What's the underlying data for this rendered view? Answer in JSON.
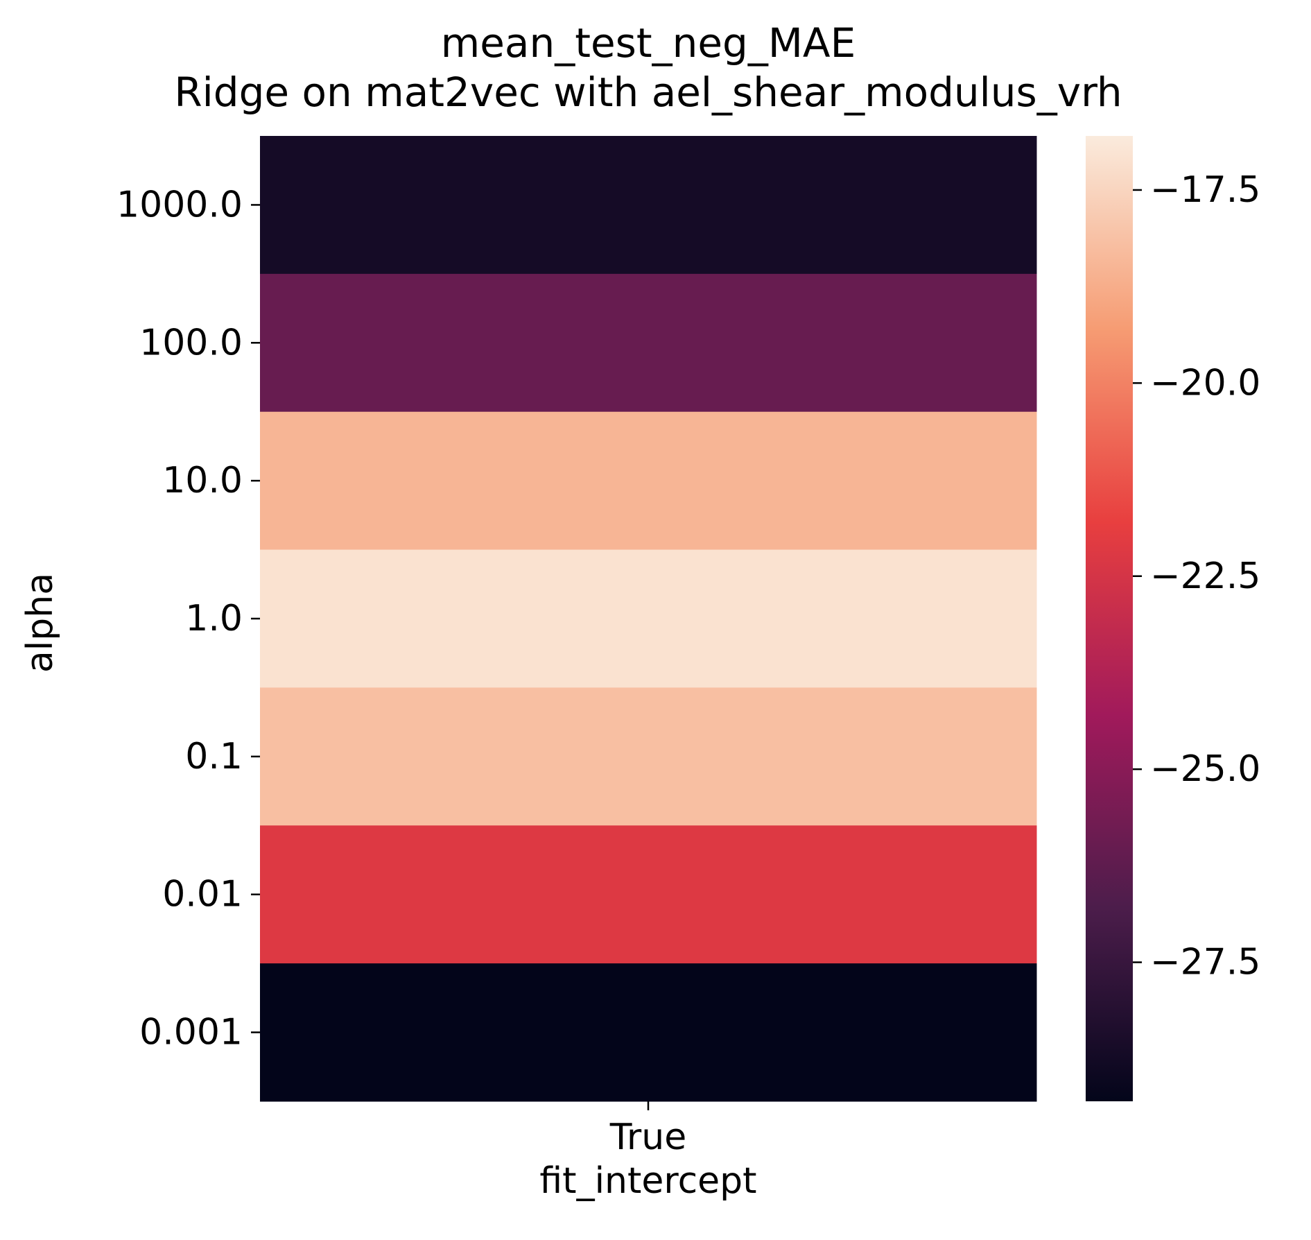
{
  "chart_data": {
    "type": "heatmap",
    "title": "mean_test_neg_MAE",
    "subtitle": "Ridge on mat2vec with ael_shear_modulus_vrh",
    "xlabel": "fit_intercept",
    "ylabel": "alpha",
    "x_categories": [
      "True"
    ],
    "y_categories": [
      "1000.0",
      "100.0",
      "10.0",
      "1.0",
      "0.1",
      "0.01",
      "0.001"
    ],
    "values": [
      [
        -28.7
      ],
      [
        -26.0
      ],
      [
        -18.5
      ],
      [
        -17.1
      ],
      [
        -18.2
      ],
      [
        -22.2
      ],
      [
        -29.3
      ]
    ],
    "colormap": "rocket",
    "colorbar": {
      "range": [
        -29.3,
        -16.8
      ],
      "ticks": [
        -27.5,
        -25.0,
        -22.5,
        -20.0,
        -17.5
      ],
      "tick_labels": [
        "−27.5",
        "−25.0",
        "−22.5",
        "−20.0",
        "−17.5"
      ],
      "colors": [
        "#03051a",
        "#4c1d4b",
        "#a11a5b",
        "#e83f3f",
        "#f69c73",
        "#faebdd"
      ]
    },
    "grid": false
  }
}
